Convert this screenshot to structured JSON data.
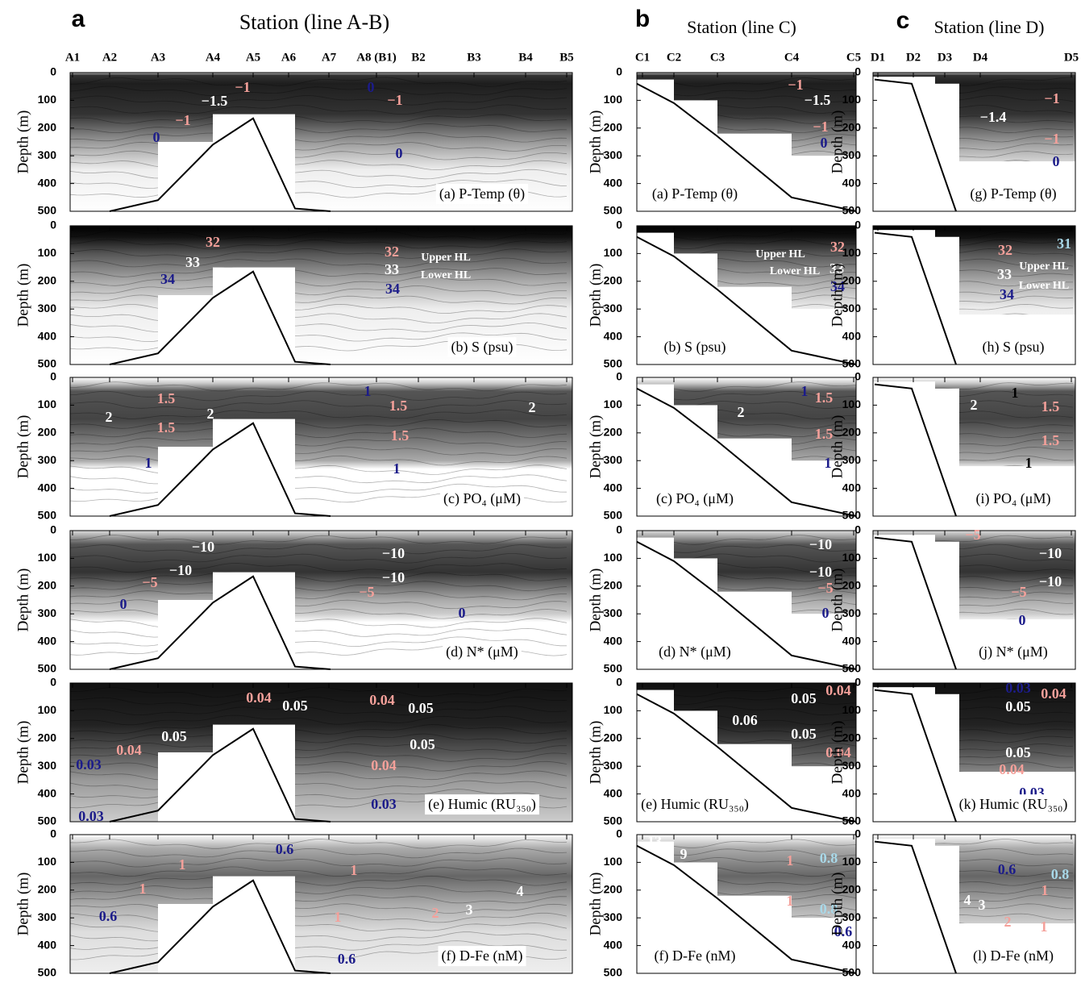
{
  "chart_data": [
    {
      "type": "contour",
      "letter": "a",
      "title": "Station (line A-B)",
      "stations": [
        "A1",
        "A2",
        "A3",
        "A4",
        "A5",
        "A6",
        "A7",
        "A8 (B1)",
        "B2",
        "B3",
        "B4",
        "B5"
      ],
      "y_label": "Depth (m)",
      "ylim": [
        0,
        500
      ],
      "y_inverted": true,
      "yticks": [
        0,
        100,
        200,
        300,
        400,
        500
      ],
      "panels": [
        {
          "title": "(a) P-Temp (θ)",
          "labels": [
            {
              "text": "−1",
              "color": "#f4a09a"
            },
            {
              "text": "−1.5",
              "color": "#ffffff"
            },
            {
              "text": "−1",
              "color": "#f4a09a"
            },
            {
              "text": "0",
              "color": "#1c1c8a"
            },
            {
              "text": "0",
              "color": "#1c1c8a"
            },
            {
              "text": "−1",
              "color": "#f4a09a"
            },
            {
              "text": "0",
              "color": "#1c1c8a"
            }
          ]
        },
        {
          "title": "(b) S (psu)",
          "labels": [
            {
              "text": "32",
              "color": "#f4a09a"
            },
            {
              "text": "33",
              "color": "#ffffff"
            },
            {
              "text": "34",
              "color": "#1c1c8a"
            },
            {
              "text": "32",
              "color": "#f4a09a"
            },
            {
              "text": "33",
              "color": "#ffffff"
            },
            {
              "text": "34",
              "color": "#1c1c8a"
            },
            {
              "text": "Upper HL",
              "color": "#ffffff"
            },
            {
              "text": "Lower HL",
              "color": "#ffffff"
            }
          ]
        },
        {
          "title": "(c) PO₄ (μM)",
          "labels": [
            {
              "text": "1.5",
              "color": "#f4a09a"
            },
            {
              "text": "2",
              "color": "#ffffff"
            },
            {
              "text": "2",
              "color": "#ffffff"
            },
            {
              "text": "1.5",
              "color": "#f4a09a"
            },
            {
              "text": "1",
              "color": "#1c1c8a"
            },
            {
              "text": "1",
              "color": "#1c1c8a"
            },
            {
              "text": "1.5",
              "color": "#f4a09a"
            },
            {
              "text": "1.5",
              "color": "#f4a09a"
            },
            {
              "text": "1",
              "color": "#1c1c8a"
            },
            {
              "text": "2",
              "color": "#ffffff"
            }
          ]
        },
        {
          "title": "(d) N* (μM)",
          "labels": [
            {
              "text": "−10",
              "color": "#ffffff"
            },
            {
              "text": "−10",
              "color": "#ffffff"
            },
            {
              "text": "−10",
              "color": "#ffffff"
            },
            {
              "text": "−10",
              "color": "#ffffff"
            },
            {
              "text": "−5",
              "color": "#f4a09a"
            },
            {
              "text": "−5",
              "color": "#f4a09a"
            },
            {
              "text": "0",
              "color": "#1c1c8a"
            },
            {
              "text": "0",
              "color": "#1c1c8a"
            }
          ]
        },
        {
          "title": "(e) Humic (RU₃₅₀)",
          "labels": [
            {
              "text": "0.04",
              "color": "#f4a09a"
            },
            {
              "text": "0.05",
              "color": "#ffffff"
            },
            {
              "text": "0.04",
              "color": "#f4a09a"
            },
            {
              "text": "0.05",
              "color": "#ffffff"
            },
            {
              "text": "0.05",
              "color": "#ffffff"
            },
            {
              "text": "0.05",
              "color": "#ffffff"
            },
            {
              "text": "0.04",
              "color": "#f4a09a"
            },
            {
              "text": "0.04",
              "color": "#f4a09a"
            },
            {
              "text": "0.03",
              "color": "#1c1c8a"
            },
            {
              "text": "0.03",
              "color": "#1c1c8a"
            },
            {
              "text": "0.03",
              "color": "#1c1c8a"
            }
          ]
        },
        {
          "title": "(f) D-Fe (nM)",
          "labels": [
            {
              "text": "0.6",
              "color": "#1c1c8a"
            },
            {
              "text": "1",
              "color": "#f4a09a"
            },
            {
              "text": "1",
              "color": "#f4a09a"
            },
            {
              "text": "1",
              "color": "#f4a09a"
            },
            {
              "text": "0.6",
              "color": "#1c1c8a"
            },
            {
              "text": "1",
              "color": "#f4a09a"
            },
            {
              "text": "2",
              "color": "#f4a09a"
            },
            {
              "text": "3",
              "color": "#ffffff"
            },
            {
              "text": "4",
              "color": "#ffffff"
            },
            {
              "text": "0.6",
              "color": "#1c1c8a"
            }
          ]
        }
      ]
    },
    {
      "type": "contour",
      "letter": "b",
      "title": "Station (line C)",
      "stations": [
        "C1",
        "C2",
        "C3",
        "C4",
        "C5"
      ],
      "y_label": "Depth (m)",
      "ylim": [
        0,
        500
      ],
      "y_inverted": true,
      "yticks": [
        0,
        100,
        200,
        300,
        400,
        500
      ],
      "panels": [
        {
          "title": "(a) P-Temp (θ)",
          "labels": [
            {
              "text": "−1",
              "color": "#f4a09a"
            },
            {
              "text": "−1.5",
              "color": "#ffffff"
            },
            {
              "text": "−1",
              "color": "#f4a09a"
            },
            {
              "text": "0",
              "color": "#1c1c8a"
            }
          ]
        },
        {
          "title": "(b) S (psu)",
          "labels": [
            {
              "text": "Upper HL",
              "color": "#ffffff"
            },
            {
              "text": "Lower HL",
              "color": "#ffffff"
            },
            {
              "text": "32",
              "color": "#f4a09a"
            },
            {
              "text": "33",
              "color": "#ffffff"
            },
            {
              "text": "34",
              "color": "#1c1c8a"
            }
          ]
        },
        {
          "title": "(c) PO₄ (μM)",
          "labels": [
            {
              "text": "1",
              "color": "#1c1c8a"
            },
            {
              "text": "1.5",
              "color": "#f4a09a"
            },
            {
              "text": "2",
              "color": "#ffffff"
            },
            {
              "text": "1.5",
              "color": "#f4a09a"
            },
            {
              "text": "1",
              "color": "#1c1c8a"
            }
          ]
        },
        {
          "title": "(d) N* (μM)",
          "labels": [
            {
              "text": "−10",
              "color": "#ffffff"
            },
            {
              "text": "−10",
              "color": "#ffffff"
            },
            {
              "text": "−5",
              "color": "#f4a09a"
            },
            {
              "text": "0",
              "color": "#1c1c8a"
            }
          ]
        },
        {
          "title": "(e) Humic (RU₃₅₀)",
          "labels": [
            {
              "text": "0.04",
              "color": "#f4a09a"
            },
            {
              "text": "0.05",
              "color": "#ffffff"
            },
            {
              "text": "0.06",
              "color": "#ffffff"
            },
            {
              "text": "0.05",
              "color": "#ffffff"
            },
            {
              "text": "0.04",
              "color": "#f4a09a"
            }
          ]
        },
        {
          "title": "(f) D-Fe (nM)",
          "labels": [
            {
              "text": "13",
              "color": "#ffffff"
            },
            {
              "text": "9",
              "color": "#ffffff"
            },
            {
              "text": "1",
              "color": "#f4a09a"
            },
            {
              "text": "0.8",
              "color": "#a8d8e8"
            },
            {
              "text": "1",
              "color": "#f4a09a"
            },
            {
              "text": "0.8",
              "color": "#a8d8e8"
            },
            {
              "text": "0.6",
              "color": "#1c1c8a"
            }
          ]
        }
      ]
    },
    {
      "type": "contour",
      "letter": "c",
      "title": "Station (line D)",
      "stations": [
        "D1",
        "D2",
        "D3",
        "D4",
        "D5"
      ],
      "y_label": "Depth (m)",
      "ylim": [
        0,
        500
      ],
      "y_inverted": true,
      "yticks": [
        0,
        100,
        200,
        300,
        400,
        500
      ],
      "panels": [
        {
          "title": "(g) P-Temp (θ)",
          "labels": [
            {
              "text": "−1",
              "color": "#f4a09a"
            },
            {
              "text": "−1.4",
              "color": "#ffffff"
            },
            {
              "text": "−1",
              "color": "#f4a09a"
            },
            {
              "text": "0",
              "color": "#1c1c8a"
            }
          ]
        },
        {
          "title": "(h) S (psu)",
          "labels": [
            {
              "text": "32",
              "color": "#f4a09a"
            },
            {
              "text": "31",
              "color": "#a8d8e8"
            },
            {
              "text": "Upper HL",
              "color": "#ffffff"
            },
            {
              "text": "33",
              "color": "#ffffff"
            },
            {
              "text": "Lower HL",
              "color": "#ffffff"
            },
            {
              "text": "34",
              "color": "#1c1c8a"
            }
          ]
        },
        {
          "title": "(i) PO₄ (μM)",
          "labels": [
            {
              "text": "1",
              "color": "#000000"
            },
            {
              "text": "2",
              "color": "#ffffff"
            },
            {
              "text": "1.5",
              "color": "#f4a09a"
            },
            {
              "text": "1.5",
              "color": "#f4a09a"
            },
            {
              "text": "1",
              "color": "#000000"
            }
          ]
        },
        {
          "title": "(j) N* (μM)",
          "labels": [
            {
              "text": "−5",
              "color": "#f4a09a"
            },
            {
              "text": "−10",
              "color": "#ffffff"
            },
            {
              "text": "−10",
              "color": "#ffffff"
            },
            {
              "text": "−5",
              "color": "#f4a09a"
            },
            {
              "text": "0",
              "color": "#1c1c8a"
            }
          ]
        },
        {
          "title": "(k) Humic (RU₃₅₀)",
          "labels": [
            {
              "text": "0.03",
              "color": "#1c1c8a"
            },
            {
              "text": "0.04",
              "color": "#f4a09a"
            },
            {
              "text": "0.05",
              "color": "#ffffff"
            },
            {
              "text": "0.05",
              "color": "#ffffff"
            },
            {
              "text": "0.04",
              "color": "#f4a09a"
            },
            {
              "text": "0.03",
              "color": "#1c1c8a"
            }
          ]
        },
        {
          "title": "(l) D-Fe (nM)",
          "labels": [
            {
              "text": "0.6",
              "color": "#1c1c8a"
            },
            {
              "text": "0.8",
              "color": "#a8d8e8"
            },
            {
              "text": "1",
              "color": "#f4a09a"
            },
            {
              "text": "4",
              "color": "#ffffff"
            },
            {
              "text": "3",
              "color": "#ffffff"
            },
            {
              "text": "2",
              "color": "#f4a09a"
            },
            {
              "text": "1",
              "color": "#f4a09a"
            },
            {
              "text": "0.8",
              "color": "#a8d8e8"
            }
          ]
        }
      ]
    }
  ]
}
